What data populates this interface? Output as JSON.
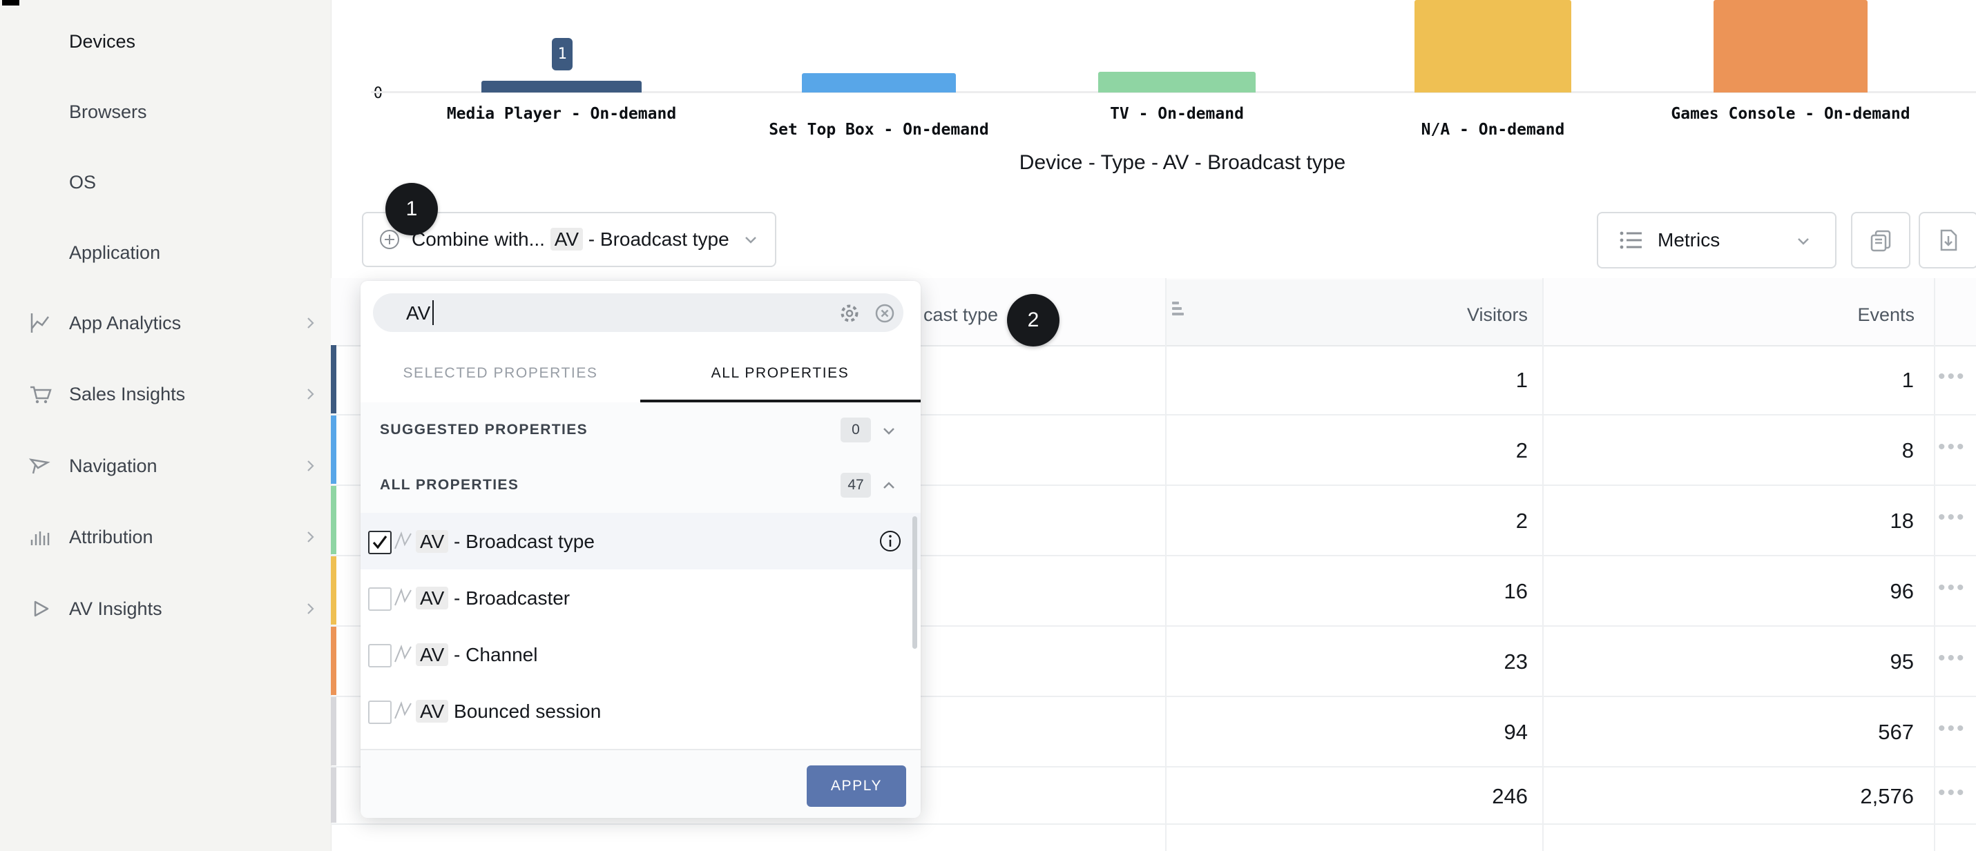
{
  "app": {
    "step_badge_1": "1",
    "step_badge_2": "2"
  },
  "sidebar": {
    "items": [
      {
        "label": "Devices",
        "active": true
      },
      {
        "label": "Browsers"
      },
      {
        "label": "OS"
      },
      {
        "label": "Application"
      },
      {
        "label": "App Analytics",
        "icon": "line-chart-icon",
        "chevron": true
      },
      {
        "label": "Sales Insights",
        "icon": "cart-icon",
        "chevron": true
      },
      {
        "label": "Navigation",
        "icon": "flag-icon",
        "chevron": true
      },
      {
        "label": "Attribution",
        "icon": "bar-chart-icon",
        "chevron": true
      },
      {
        "label": "AV Insights",
        "icon": "play-icon",
        "chevron": true
      }
    ]
  },
  "chart_data": {
    "type": "bar",
    "title": "Device - Type - AV - Broadcast type",
    "categories": [
      "Media Player - On-demand",
      "Set Top Box - On-demand",
      "TV - On-demand",
      "N/A - On-demand",
      "Games Console - On-demand"
    ],
    "series": [
      {
        "name": "Visitors",
        "values": [
          1,
          2,
          2,
          16,
          23
        ]
      }
    ],
    "colors": [
      "#3d5a80",
      "#58a6e8",
      "#8fd5a3",
      "#efc053",
      "#ec9457"
    ],
    "y_axis_zero_label": "0",
    "bar_value_label": "1",
    "grid": false,
    "legend_position": "none",
    "bars_clipped_at_top": [
      "N/A - On-demand",
      "Games Console - On-demand"
    ]
  },
  "toolbar": {
    "combine": {
      "prefix": "Combine with... ",
      "highlight": "AV",
      "suffix": " - Broadcast type"
    },
    "metrics_label": "Metrics"
  },
  "panel": {
    "search": {
      "value": "AV"
    },
    "tabs": [
      {
        "label": "SELECTED PROPERTIES",
        "active": false
      },
      {
        "label": "ALL PROPERTIES",
        "active": true
      }
    ],
    "sections": [
      {
        "label": "SUGGESTED PROPERTIES",
        "count": "0",
        "collapsed": true
      },
      {
        "label": "ALL PROPERTIES",
        "count": "47",
        "collapsed": false
      }
    ],
    "items": [
      {
        "highlight": "AV",
        "rest": " - Broadcast type",
        "checked": true,
        "info": true
      },
      {
        "highlight": "AV",
        "rest": " - Broadcaster",
        "checked": false
      },
      {
        "highlight": "AV",
        "rest": " - Channel",
        "checked": false
      },
      {
        "highlight": "AV",
        "rest": " Bounced session",
        "checked": false
      }
    ],
    "apply_label": "APPLY"
  },
  "table": {
    "header": {
      "col1_visible": "cast type",
      "visitors": "Visitors",
      "events": "Events"
    },
    "rows": [
      {
        "visitors": "1",
        "events": "1",
        "stripe": "#3d5a80"
      },
      {
        "visitors": "2",
        "events": "8",
        "stripe": "#58a6e8"
      },
      {
        "visitors": "2",
        "events": "18",
        "stripe": "#8fd5a3"
      },
      {
        "visitors": "16",
        "events": "96",
        "stripe": "#efc053"
      },
      {
        "visitors": "23",
        "events": "95",
        "stripe": "#ec9457"
      },
      {
        "visitors": "94",
        "events": "567",
        "stripe": "#d7d7db"
      },
      {
        "visitors": "246",
        "events": "2,576",
        "stripe": "#d7d7db"
      }
    ]
  },
  "colors": {
    "apply_accent": "#5b76ae",
    "badge_bg": "#17191c",
    "sidebar_bg": "#f4f4f2",
    "highlight_chip": "#ececec",
    "visitors_header_bg": "#f7f8f9"
  }
}
